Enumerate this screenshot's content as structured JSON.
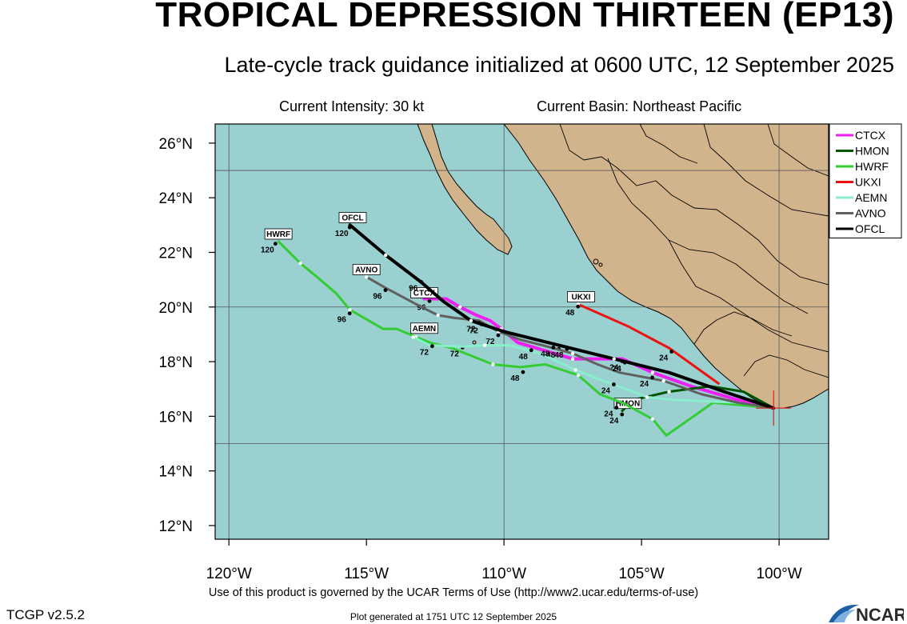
{
  "header": {
    "title": "TROPICAL DEPRESSION THIRTEEN (EP13)",
    "subtitle": "Late-cycle track guidance initialized at 0600 UTC, 12 September 2025",
    "current_intensity": "Current Intensity: 30 kt",
    "current_basin": "Current Basin: Northeast Pacific"
  },
  "map": {
    "lon_range": [
      -120.5,
      -98.2
    ],
    "lat_range": [
      11.5,
      26.7
    ],
    "lon_ticks": [
      {
        "value": -120,
        "label": "120°W"
      },
      {
        "value": -115,
        "label": "115°W"
      },
      {
        "value": -110,
        "label": "110°W"
      },
      {
        "value": -105,
        "label": "105°W"
      },
      {
        "value": -100,
        "label": "100°W"
      }
    ],
    "lat_ticks": [
      {
        "value": 12,
        "label": "12°N"
      },
      {
        "value": 14,
        "label": "14°N"
      },
      {
        "value": 16,
        "label": "16°N"
      },
      {
        "value": 18,
        "label": "18°N"
      },
      {
        "value": 20,
        "label": "20°N"
      },
      {
        "value": 22,
        "label": "22°N"
      },
      {
        "value": 24,
        "label": "24°N"
      },
      {
        "value": 26,
        "label": "26°N"
      }
    ],
    "grid_lons": [
      -120,
      -110,
      -100
    ],
    "grid_lats": [
      15,
      20,
      25
    ],
    "ocean_color": "#9ad0d0",
    "land_color": "#d2b48c",
    "storm_position": {
      "lon": -100.2,
      "lat": 16.3
    },
    "tracks": [
      {
        "name": "CTCX",
        "color": "#ee1ff0",
        "width": 4,
        "points": [
          [
            -100.2,
            16.3
          ],
          [
            -101.5,
            16.6
          ],
          [
            -103.2,
            17.1
          ],
          [
            -104.6,
            17.6
          ],
          [
            -105.7,
            18.1
          ],
          [
            -106.5,
            18.1
          ],
          [
            -107.5,
            18.1
          ],
          [
            -108.5,
            18.4
          ],
          [
            -109.5,
            18.7
          ],
          [
            -110.1,
            19.2
          ],
          [
            -110.5,
            19.5
          ],
          [
            -111.0,
            19.7
          ],
          [
            -111.6,
            20.0
          ],
          [
            -112.1,
            20.3
          ],
          [
            -112.9,
            20.3
          ]
        ],
        "labels": [
          {
            "lon": -106.0,
            "lat": 17.9,
            "text": "24"
          },
          {
            "lon": -108.3,
            "lat": 18.35,
            "text": "48"
          },
          {
            "lon": -110.5,
            "lat": 18.85,
            "text": "72"
          },
          {
            "lon": -113.0,
            "lat": 20.1,
            "text": "96"
          }
        ],
        "box": {
          "lon": -112.9,
          "lat": 20.45
        }
      },
      {
        "name": "HMON",
        "color": "#005500",
        "width": 3,
        "points": [
          [
            -100.2,
            16.3
          ],
          [
            -101.3,
            16.9
          ],
          [
            -102.5,
            17.1
          ],
          [
            -104.0,
            16.9
          ],
          [
            -105.3,
            16.6
          ],
          [
            -105.7,
            16.2
          ]
        ],
        "labels": [
          {
            "lon": -106.0,
            "lat": 15.95,
            "text": "24"
          }
        ],
        "box": {
          "lon": -105.5,
          "lat": 16.4
        }
      },
      {
        "name": "HWRF",
        "color": "#33cc33",
        "width": 3,
        "points": [
          [
            -100.2,
            16.3
          ],
          [
            -102.4,
            16.5
          ],
          [
            -104.1,
            15.3
          ],
          [
            -104.6,
            15.9
          ],
          [
            -105.7,
            16.5
          ],
          [
            -106.5,
            16.8
          ],
          [
            -107.3,
            17.5
          ],
          [
            -108.5,
            17.9
          ],
          [
            -109.4,
            17.8
          ],
          [
            -110.4,
            17.9
          ],
          [
            -111.9,
            18.5
          ],
          [
            -112.7,
            18.7
          ],
          [
            -113.2,
            18.9
          ],
          [
            -113.9,
            19.2
          ],
          [
            -114.4,
            19.2
          ],
          [
            -115.6,
            19.9
          ],
          [
            -116.1,
            20.5
          ],
          [
            -116.8,
            21.1
          ],
          [
            -117.4,
            21.6
          ],
          [
            -118.2,
            22.4
          ]
        ],
        "labels": [
          {
            "lon": -106.2,
            "lat": 16.2,
            "text": "24"
          },
          {
            "lon": -109.6,
            "lat": 17.5,
            "text": "48"
          },
          {
            "lon": -111.8,
            "lat": 18.4,
            "text": "72"
          },
          {
            "lon": -115.9,
            "lat": 19.65,
            "text": "96"
          },
          {
            "lon": -118.6,
            "lat": 22.2,
            "text": "120"
          }
        ],
        "box": {
          "lon": -118.2,
          "lat": 22.6
        }
      },
      {
        "name": "UKXI",
        "color": "#ee1111",
        "width": 3,
        "points": [
          [
            -102.2,
            17.2
          ],
          [
            -104.0,
            18.5
          ],
          [
            -105.5,
            19.3
          ],
          [
            -107.3,
            20.1
          ]
        ],
        "labels": [
          {
            "lon": -104.2,
            "lat": 18.25,
            "text": "24"
          },
          {
            "lon": -107.6,
            "lat": 19.9,
            "text": "48"
          }
        ],
        "box": {
          "lon": -107.2,
          "lat": 20.3
        }
      },
      {
        "name": "AEMN",
        "color": "#88eecc",
        "width": 3,
        "points": [
          [
            -100.2,
            16.3
          ],
          [
            -101.5,
            16.5
          ],
          [
            -103.8,
            16.6
          ],
          [
            -104.8,
            16.7
          ],
          [
            -105.3,
            16.9
          ],
          [
            -106.4,
            17.3
          ],
          [
            -107.4,
            17.7
          ],
          [
            -108.7,
            18.3
          ],
          [
            -109.8,
            18.6
          ],
          [
            -110.7,
            18.6
          ],
          [
            -111.5,
            18.55
          ],
          [
            -112.7,
            18.6
          ],
          [
            -113.3,
            18.9
          ]
        ],
        "labels": [
          {
            "lon": -106.3,
            "lat": 17.05,
            "text": "24"
          },
          {
            "lon": -109.3,
            "lat": 18.3,
            "text": "48"
          },
          {
            "lon": -112.9,
            "lat": 18.45,
            "text": "72"
          }
        ],
        "box": {
          "lon": -112.9,
          "lat": 19.15
        }
      },
      {
        "name": "AVNO",
        "color": "#606060",
        "width": 3,
        "points": [
          [
            -100.2,
            16.3
          ],
          [
            -101.5,
            16.5
          ],
          [
            -102.8,
            16.8
          ],
          [
            -104.2,
            17.3
          ],
          [
            -105.8,
            17.6
          ],
          [
            -106.6,
            17.9
          ],
          [
            -107.5,
            18.3
          ],
          [
            -108.6,
            18.6
          ],
          [
            -109.4,
            18.8
          ],
          [
            -110.2,
            19.1
          ],
          [
            -110.9,
            19.5
          ],
          [
            -111.8,
            19.6
          ],
          [
            -112.4,
            19.7
          ],
          [
            -113.0,
            20.0
          ],
          [
            -114.3,
            20.7
          ],
          [
            -115.0,
            21.1
          ]
        ],
        "labels": [
          {
            "lon": -104.9,
            "lat": 17.3,
            "text": "24"
          },
          {
            "lon": -108.0,
            "lat": 18.35,
            "text": "48"
          },
          {
            "lon": -111.1,
            "lat": 19.25,
            "text": "72"
          },
          {
            "lon": -114.6,
            "lat": 20.5,
            "text": "96"
          }
        ],
        "box": {
          "lon": -115.0,
          "lat": 21.3
        }
      },
      {
        "name": "OFCL",
        "color": "#000000",
        "width": 4,
        "points": [
          [
            -100.2,
            16.3
          ],
          [
            -102.0,
            16.9
          ],
          [
            -104.0,
            17.6
          ],
          [
            -106.0,
            18.1
          ],
          [
            -108.0,
            18.6
          ],
          [
            -110.0,
            19.1
          ],
          [
            -111.2,
            19.5
          ],
          [
            -112.2,
            20.2
          ],
          [
            -113.0,
            20.9
          ],
          [
            -114.3,
            21.9
          ],
          [
            -115.6,
            23.0
          ]
        ],
        "labels": [
          {
            "lon": -105.9,
            "lat": 17.85,
            "text": "24"
          },
          {
            "lon": -108.5,
            "lat": 18.4,
            "text": "48"
          },
          {
            "lon": -111.2,
            "lat": 19.3,
            "text": "72"
          },
          {
            "lon": -113.3,
            "lat": 20.8,
            "text": "96"
          },
          {
            "lon": -115.9,
            "lat": 22.8,
            "text": "120"
          }
        ],
        "box": {
          "lon": -115.5,
          "lat": 23.2
        }
      }
    ]
  },
  "footer": {
    "terms": "Use of this product is governed by the UCAR Terms of Use (http://www2.ucar.edu/terms-of-use)",
    "version": "TCGP v2.5.2",
    "generated": "Plot generated at 1751 UTC   12 September 2025",
    "logo_text": "NCAR"
  }
}
